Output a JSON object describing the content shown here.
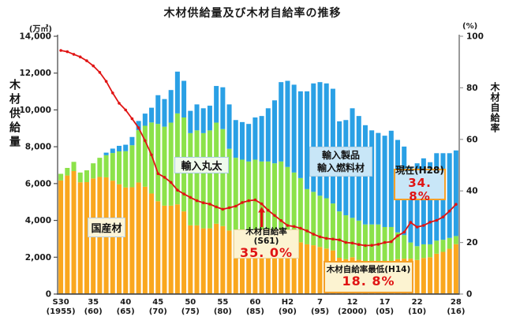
{
  "title": "木材供給量及び木材自給率の推移",
  "axes": {
    "left_unit": "(万㎥)",
    "left_label": "木材供給量",
    "right_unit": "(%)",
    "right_label": "木材自給率",
    "left_ticks": [
      "0",
      "2,000",
      "4,000",
      "6,000",
      "8,000",
      "10,000",
      "12,000",
      "14,000"
    ],
    "right_ticks": [
      "0",
      "20",
      "40",
      "60",
      "80",
      "100"
    ]
  },
  "series_labels": {
    "domestic": "国産材",
    "imported_logs": "輸入丸太",
    "imported_products_line1": "輸入製品",
    "imported_products_line2": "輸入燃料材"
  },
  "annotations": {
    "s61": {
      "label": "木材自給率(S61)",
      "value": "35. 0%"
    },
    "h14": {
      "label": "木材自給率最低(H14)",
      "value": "18. 8%"
    },
    "h28": {
      "label": "現在(H28)",
      "value": "34. 8%"
    }
  },
  "chart_data": {
    "type": "bar",
    "subtype": "stacked-bars-with-rate-line",
    "title": "木材供給量及び木材自給率の推移",
    "ylabel_left": "木材供給量(万㎥)",
    "ylabel_right": "木材自給率(%)",
    "ylim_left": [
      0,
      14000
    ],
    "ylim_right": [
      0,
      100
    ],
    "grid": false,
    "legend_position": "in-plot-callouts",
    "years": [
      1955,
      1956,
      1957,
      1958,
      1959,
      1960,
      1961,
      1962,
      1963,
      1964,
      1965,
      1966,
      1967,
      1968,
      1969,
      1970,
      1971,
      1972,
      1973,
      1974,
      1975,
      1976,
      1977,
      1978,
      1979,
      1980,
      1981,
      1982,
      1983,
      1984,
      1985,
      1986,
      1987,
      1988,
      1989,
      1990,
      1991,
      1992,
      1993,
      1994,
      1995,
      1996,
      1997,
      1998,
      1999,
      2000,
      2001,
      2002,
      2003,
      2004,
      2005,
      2006,
      2007,
      2008,
      2009,
      2010,
      2011,
      2012,
      2013,
      2014,
      2015,
      2016
    ],
    "series": [
      {
        "name": "国産材",
        "color": "#faa71e",
        "values": [
          6170,
          6440,
          6680,
          6070,
          6080,
          6280,
          6360,
          6340,
          6160,
          5960,
          5790,
          5800,
          6060,
          5830,
          5460,
          5040,
          4800,
          4800,
          4870,
          4490,
          3730,
          3730,
          3570,
          3570,
          3820,
          3690,
          3450,
          3220,
          3310,
          3340,
          3500,
          3380,
          3280,
          3210,
          3280,
          3080,
          2980,
          2810,
          2700,
          2650,
          2560,
          2470,
          2370,
          1970,
          1890,
          2000,
          1860,
          1720,
          1680,
          1690,
          1720,
          1800,
          1890,
          1920,
          1920,
          1850,
          1960,
          2000,
          2190,
          2290,
          2460,
          2710
        ]
      },
      {
        "name": "輸入丸太",
        "color": "#8ce24a",
        "values": [
          360,
          410,
          500,
          530,
          640,
          820,
          1040,
          1200,
          1500,
          1790,
          1970,
          2280,
          2840,
          3310,
          3860,
          4200,
          4290,
          4510,
          4940,
          5100,
          5010,
          5160,
          5170,
          5320,
          5490,
          5270,
          4440,
          4180,
          3990,
          3860,
          3800,
          3820,
          3920,
          3890,
          3920,
          3820,
          3620,
          3490,
          3000,
          2900,
          2780,
          2730,
          2550,
          2520,
          2390,
          2140,
          2130,
          2060,
          2100,
          2090,
          1920,
          1840,
          1460,
          1280,
          880,
          750,
          740,
          700,
          710,
          660,
          590,
          440
        ]
      },
      {
        "name": "輸入製品・輸入燃料材",
        "color": "#2aa0e5",
        "values": [
          0,
          0,
          0,
          0,
          0,
          0,
          0,
          140,
          240,
          300,
          350,
          450,
          500,
          660,
          800,
          1560,
          1500,
          1770,
          2270,
          1990,
          1210,
          1410,
          1350,
          1340,
          1990,
          2270,
          2410,
          2050,
          2040,
          2040,
          2290,
          2470,
          2890,
          3420,
          4310,
          4680,
          4770,
          4710,
          5310,
          5890,
          6170,
          6240,
          6230,
          4890,
          5170,
          5950,
          5680,
          5390,
          5110,
          4970,
          4960,
          5230,
          5020,
          4810,
          4100,
          4500,
          4670,
          4460,
          4750,
          4700,
          4600,
          4650
        ]
      }
    ],
    "rate_line": {
      "name": "木材自給率",
      "color": "#e01414",
      "unit": "%",
      "values": [
        94.5,
        94.0,
        93.0,
        92.0,
        90.5,
        88.5,
        86.0,
        82.5,
        78.0,
        74.0,
        71.4,
        68.0,
        64.5,
        59.5,
        54.0,
        46.7,
        45.3,
        43.3,
        40.3,
        38.8,
        37.5,
        36.2,
        35.4,
        34.9,
        33.8,
        32.9,
        33.5,
        34.1,
        35.5,
        36.2,
        36.5,
        35.0,
        32.5,
        30.5,
        28.5,
        26.6,
        26.2,
        25.5,
        24.5,
        23.2,
        22.2,
        21.6,
        21.3,
        21.0,
        20.0,
        19.8,
        19.2,
        18.8,
        18.9,
        19.3,
        20.0,
        20.3,
        22.6,
        24.0,
        27.8,
        26.0,
        26.6,
        27.9,
        28.6,
        29.9,
        32.2,
        34.8
      ]
    },
    "x_ticks": [
      {
        "index": 0,
        "era": "S30",
        "year": "(1955)"
      },
      {
        "index": 5,
        "era": "35",
        "year": "(60)"
      },
      {
        "index": 10,
        "era": "40",
        "year": "(65)"
      },
      {
        "index": 15,
        "era": "45",
        "year": "(70)"
      },
      {
        "index": 20,
        "era": "50",
        "year": "(75)"
      },
      {
        "index": 25,
        "era": "55",
        "year": "(80)"
      },
      {
        "index": 30,
        "era": "60",
        "year": "(85)"
      },
      {
        "index": 35,
        "era": "H2",
        "year": "(90)"
      },
      {
        "index": 40,
        "era": "7",
        "year": "(95)"
      },
      {
        "index": 45,
        "era": "12",
        "year": "(2000)"
      },
      {
        "index": 50,
        "era": "17",
        "year": "(05)"
      },
      {
        "index": 55,
        "era": "22",
        "year": "(10)"
      },
      {
        "index": 61,
        "era": "28",
        "year": "(16)"
      }
    ],
    "annotations": [
      {
        "at_year": 1986,
        "label": "木材自給率(S61)",
        "value": "35. 0%",
        "marker": "red-up-arrow"
      },
      {
        "at_year": 2002,
        "label": "木材自給率最低(H14)",
        "value": "18. 8%"
      },
      {
        "at_year": 2016,
        "label": "現在(H28)",
        "value": "34. 8%"
      }
    ],
    "colors": {
      "domestic": "#faa71e",
      "imported_logs": "#8ce24a",
      "imported_products": "#2aa0e5",
      "rate_line": "#e01414",
      "axis": "#4d4d4d",
      "cream_box": "#fcf3d1",
      "blue_box": "#c8e6f7",
      "orange_border": "#f5a028"
    }
  }
}
